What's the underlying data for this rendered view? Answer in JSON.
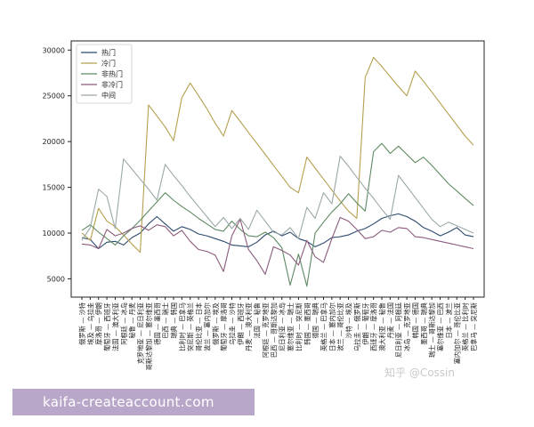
{
  "chart_data": {
    "type": "line",
    "title": "",
    "xlabel": "",
    "ylabel": "",
    "ylim": [
      3000,
      31000
    ],
    "yticks": [
      5000,
      10000,
      15000,
      20000,
      25000,
      30000
    ],
    "grid": false,
    "legend_position": "top-left",
    "x": [
      "俄罗斯 — 沙特",
      "埃及 — 乌拉圭",
      "摩洛哥 — 伊朗",
      "葡萄牙 — 西班牙",
      "法国 — 澳大利亚",
      "阿根廷 — 冰岛",
      "秘鲁 — 丹麦",
      "克罗地亚 — 尼日利亚",
      "哥斯达黎加 — 塞尔维亚",
      "德国 — 墨西哥",
      "巴西 — 瑞士",
      "瑞典 — 韩国",
      "比利时 — 巴拿马",
      "突尼斯 — 英格兰",
      "哥伦比亚 — 日本",
      "波兰 — 塞内加尔",
      "俄罗斯 — 埃及",
      "葡萄牙 — 摩洛哥",
      "乌拉圭 — 沙特",
      "伊朗 — 西班牙",
      "丹麦 — 澳大利亚",
      "法国 — 秘鲁",
      "阿根廷 — 克罗地亚",
      "巴西 — 哥斯达黎加",
      "尼日利亚 — 冰岛",
      "塞尔维亚 — 瑞士",
      "比利时 — 突尼斯",
      "韩国 — 墨西哥",
      "德国 — 瑞典",
      "英格兰 — 巴拿马",
      "日本 — 塞内加尔",
      "波兰 — 哥伦比亚",
      "沙特 — 埃及",
      "乌拉圭 — 俄罗斯",
      "伊朗 — 葡萄牙",
      "西班牙 — 摩洛哥",
      "澳大利亚 — 秘鲁",
      "丹麦 — 法国",
      "尼日利亚 — 阿根廷",
      "冰岛 — 克罗地亚",
      "韩国 — 德国",
      "墨西哥 — 瑞典",
      "瑞士 — 哥斯达黎加",
      "塞尔维亚 — 巴西",
      "日本 — 波兰",
      "塞内加尔 — 哥伦比亚",
      "英格兰 — 比利时",
      "巴拿马 — 突尼斯"
    ],
    "series": [
      {
        "name": "热门",
        "color": "#2b4a6e",
        "values": [
          9500,
          9300,
          8300,
          9000,
          9100,
          8700,
          9500,
          10000,
          11000,
          11800,
          11000,
          10200,
          10700,
          10400,
          9900,
          9700,
          9400,
          9100,
          8700,
          8600,
          8500,
          9000,
          9800,
          10200,
          9700,
          10100,
          9400,
          9100,
          8500,
          8900,
          9500,
          9600,
          9800,
          10200,
          10500,
          11000,
          11600,
          11900,
          12100,
          11800,
          11300,
          10600,
          10200,
          9700,
          10100,
          10600,
          9800,
          9600
        ]
      },
      {
        "name": "冷门",
        "color": "#b5a04e",
        "values": [
          10000,
          9200,
          12700,
          11300,
          10700,
          9800,
          8800,
          7900,
          24000,
          22800,
          21600,
          20100,
          24800,
          26400,
          25000,
          23600,
          22000,
          20600,
          23400,
          22200,
          21000,
          19800,
          18600,
          17400,
          16200,
          15000,
          14400,
          18300,
          17100,
          15900,
          14700,
          13500,
          12400,
          11600,
          27000,
          29200,
          28200,
          27100,
          26000,
          25000,
          27700,
          26600,
          25400,
          24200,
          23000,
          21800,
          20600,
          19600
        ]
      },
      {
        "name": "非热门",
        "color": "#5e8a63",
        "values": [
          10300,
          10900,
          10100,
          9400,
          8700,
          9700,
          10500,
          11400,
          12400,
          13400,
          14400,
          13600,
          12900,
          12300,
          11600,
          11000,
          10400,
          10200,
          11300,
          10400,
          9700,
          9600,
          10100,
          9500,
          8400,
          4300,
          7700,
          4200,
          10000,
          11200,
          12300,
          13200,
          14300,
          13300,
          12400,
          18900,
          19800,
          18700,
          19500,
          18600,
          17700,
          18300,
          17400,
          16400,
          15400,
          14600,
          13800,
          13000
        ]
      },
      {
        "name": "非冷门",
        "color": "#8b5a7c",
        "values": [
          8800,
          8700,
          8300,
          10400,
          9700,
          10000,
          10500,
          10800,
          10300,
          10900,
          10700,
          9700,
          10300,
          9100,
          8200,
          8000,
          7600,
          5800,
          9700,
          11500,
          8200,
          7000,
          5500,
          8500,
          8100,
          7600,
          6500,
          9200,
          7400,
          6800,
          9400,
          11700,
          11300,
          10400,
          9400,
          9600,
          10300,
          10100,
          10600,
          10500,
          9600,
          9500,
          9300,
          9100,
          8900,
          8700,
          8500,
          8300
        ]
      },
      {
        "name": "中间",
        "color": "#9aa8a8",
        "values": [
          9200,
          10600,
          14800,
          14000,
          10500,
          18100,
          17000,
          15900,
          14800,
          13600,
          17500,
          16300,
          15200,
          14000,
          12900,
          11800,
          10700,
          11700,
          10500,
          11600,
          10400,
          12500,
          11300,
          10100,
          9800,
          10600,
          9400,
          12800,
          11600,
          14400,
          13200,
          18400,
          17300,
          16100,
          14900,
          13800,
          12600,
          11500,
          16300,
          15100,
          13900,
          12700,
          11500,
          10700,
          11200,
          10800,
          10400,
          10000
        ]
      }
    ]
  },
  "watermark": {
    "text": "kaifa-createaccount.com"
  },
  "credit": {
    "text": "知乎 @Cossin"
  }
}
